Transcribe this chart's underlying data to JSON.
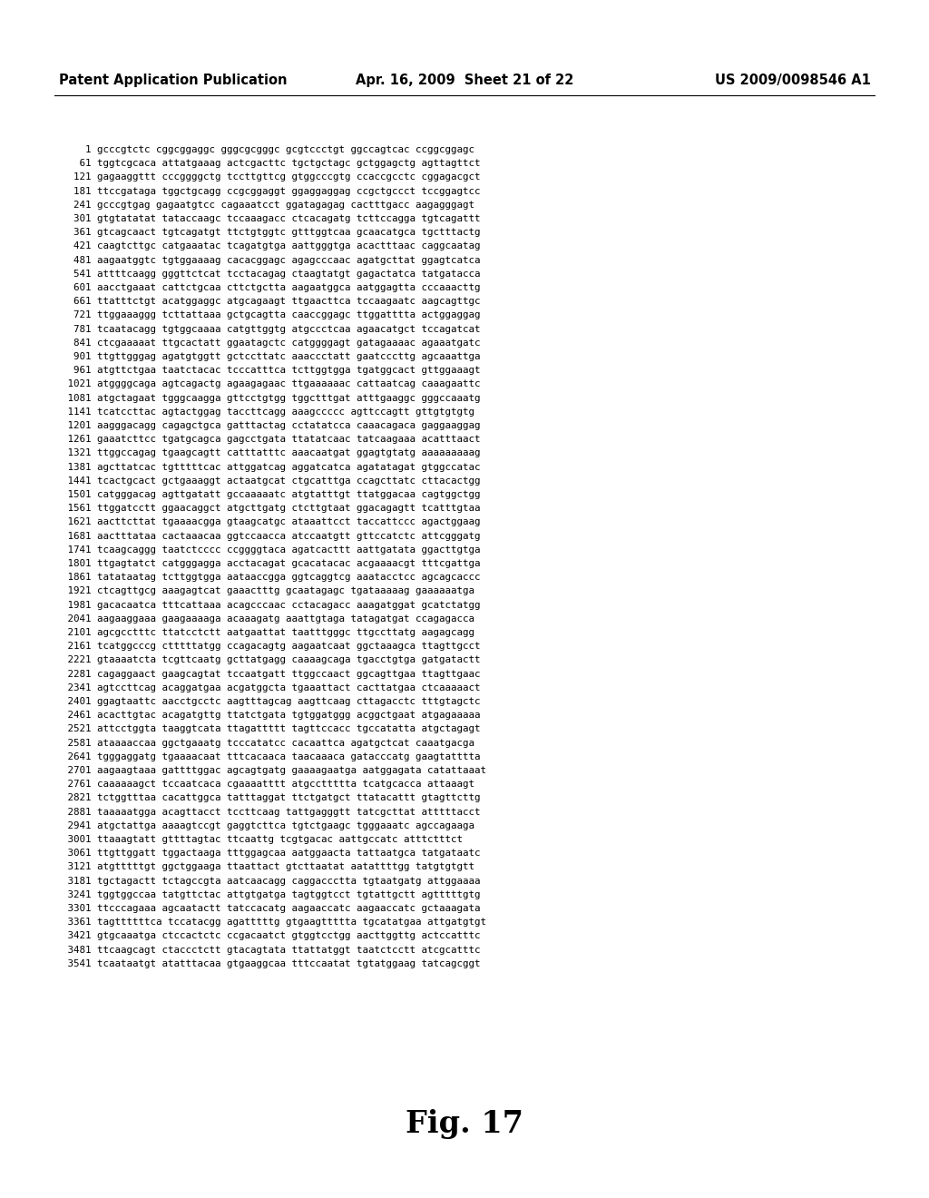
{
  "header_left": "Patent Application Publication",
  "header_center": "Apr. 16, 2009  Sheet 21 of 22",
  "header_right": "US 2009/0098546 A1",
  "figure_label": "Fig. 17",
  "background_color": "#ffffff",
  "text_color": "#000000",
  "header_fontsize": 10.5,
  "body_fontsize": 7.8,
  "fig_label_fontsize": 24,
  "sequence_lines": [
    "    1 gcccgtctc cggcggaggc gggcgcgggc gcgtccctgt ggccagtcac ccggcggagc",
    "   61 tggtcgcaca attatgaaag actcgacttc tgctgctagc gctggagctg agttagttct",
    "  121 gagaaggttt cccggggctg tccttgttcg gtggcccgtg ccaccgcctc cggagacgct",
    "  181 ttccgataga tggctgcagg ccgcggaggt ggaggaggag ccgctgccct tccggagtcc",
    "  241 gcccgtgag gagaatgtcc cagaaatcct ggatagagag cactttgacc aagagggagt",
    "  301 gtgtatatat tataccaagc tccaaagacc ctcacagatg tcttccagga tgtcagattt",
    "  361 gtcagcaact tgtcagatgt ttctgtggtc gtttggtcaa gcaacatgca tgctttactg",
    "  421 caagtcttgc catgaaatac tcagatgtga aattgggtga acactttaac caggcaatag",
    "  481 aagaatggtc tgtggaaaag cacacggagc agagcccaac agatgcttat ggagtcatca",
    "  541 attttcaagg gggttctcat tcctacagag ctaagtatgt gagactatca tatgatacca",
    "  601 aacctgaaat cattctgcaa cttctgctta aagaatggca aatggagtta cccaaacttg",
    "  661 ttatttctgt acatggaggc atgcagaagt ttgaacttca tccaagaatc aagcagttgc",
    "  721 ttggaaaggg tcttattaaa gctgcagtta caaccggagc ttggatttta actggaggag",
    "  781 tcaatacagg tgtggcaaaa catgttggtg atgccctcaa agaacatgct tccagatcat",
    "  841 ctcgaaaaat ttgcactatt ggaatagctc catggggagt gatagaaaac agaaatgatc",
    "  901 ttgttgggag agatgtggtt gctccttatc aaaccctatt gaatcccttg agcaaattga",
    "  961 atgttctgaa taatctacac tcccatttca tcttggtgga tgatggcact gttggaaagt",
    " 1021 atggggcaga agtcagactg agaagagaac ttgaaaaaac cattaatcag caaagaattc",
    " 1081 atgctagaat tgggcaagga gttcctgtgg tggctttgat atttgaaggc gggccaaatg",
    " 1141 tcatccttac agtactggag taccttcagg aaagccccc agttccagtt gttgtgtgtg",
    " 1201 aagggacagg cagagctgca gatttactag cctatatcca caaacagaca gaggaaggag",
    " 1261 gaaatcttcc tgatgcagca gagcctgata ttatatcaac tatcaagaaa acatttaact",
    " 1321 ttggccagag tgaagcagtt catttatttc aaacaatgat ggagtgtatg aaaaaaaaag",
    " 1381 agcttatcac tgtttttcac attggatcag aggatcatca agatatagat gtggccatac",
    " 1441 tcactgcact gctgaaaggt actaatgcat ctgcatttga ccagcttatc cttacactgg",
    " 1501 catgggacag agttgatatt gccaaaaatc atgtatttgt ttatggacaa cagtggctgg",
    " 1561 ttggatcctt ggaacaggct atgcttgatg ctcttgtaat ggacagagtt tcatttgtaa",
    " 1621 aacttcttat tgaaaacgga gtaagcatgc ataaattcct taccattccc agactggaag",
    " 1681 aactttataa cactaaacaa ggtccaacca atccaatgtt gttccatctc attcgggatg",
    " 1741 tcaagcaggg taatctcccc ccggggtaca agatcacttt aattgatata ggacttgtga",
    " 1801 ttgagtatct catgggagga acctacagat gcacatacac acgaaaacgt tttcgattga",
    " 1861 tatataatag tcttggtgga aataaccgga ggtcaggtcg aaatacctcc agcagcaccc",
    " 1921 ctcagttgcg aaagagtcat gaaactttg gcaatagagc tgataaaaag gaaaaaatga",
    " 1981 gacacaatca tttcattaaa acagcccaac cctacagacc aaagatggat gcatctatgg",
    " 2041 aagaaggaaa gaagaaaaga acaaagatg aaattgtaga tatagatgat ccagagacca",
    " 2101 agcgcctttc ttatcctctt aatgaattat taatttgggc ttgccttatg aagagcagg",
    " 2161 tcatggcccg ctttttatgg ccagacagtg aagaatcaat ggctaaagca ttagttgcct",
    " 2221 gtaaaatcta tcgttcaatg gcttatgagg caaaagcaga tgacctgtga gatgatactt",
    " 2281 cagaggaact gaagcagtat tccaatgatt ttggccaact ggcagttgaa ttagttgaac",
    " 2341 agtccttcag acaggatgaa acgatggcta tgaaattact cacttatgaa ctcaaaaact",
    " 2401 ggagtaattc aacctgcctc aagtttagcag aagttcaag cttagacctc tttgtagctc",
    " 2461 acacttgtac acagatgttg ttatctgata tgtggatggg acggctgaat atgagaaaaa",
    " 2521 attcctggta taaggtcata ttagattttt tagttccacc tgccatatta atgctagagt",
    " 2581 ataaaaccaa ggctgaaatg tcccatatcc cacaattca agatgctcat caaatgacga",
    " 2641 tgggaggatg tgaaaacaat tttcacaaca taacaaaca gatacccatg gaagtatttta",
    " 2701 aagaagtaaa gattttggac agcagtgatg gaaaagaatga aatggagata catattaaat",
    " 2761 caaaaaagct tccaatcaca cgaaaatttt atgccttttta tcatgcacca attaaagt",
    " 2821 tctggtttaa cacattggca tatttaggat ttctgatgct ttatacattt gtagttcttg",
    " 2881 taaaaatgga acagttacct tccttcaag tattgagggtt tatcgcttat atttttacct",
    " 2941 atgctattga aaaagtccgt gaggtcttca tgtctgaagc tgggaaatc agccagaaga",
    " 3001 ttaaagtatt gttttagtac ttcaattg tcgtgacac aattgccatc atttctttct",
    " 3061 ttgttggatt tggactaaga tttggagcaa aatggaacta tattaatgca tatgataatc",
    " 3121 atgtttttgt ggctggaaga ttaattact gtcttaatat aatattttgg tatgtgtgtt",
    " 3181 tgctagactt tctagccgta aatcaacagg caggaccctta tgtaatgatg attggaaaa",
    " 3241 tggtggccaa tatgttctac attgtgatga tagtggtcct tgtattgctt agtttttgtg",
    " 3301 ttcccagaaa agcaatactt tatccacatg aagaaccatc aagaaccatc gctaaagata",
    " 3361 tagttttttca tccatacgg agatttttg gtgaagttttta tgcatatgaa attgatgtgt",
    " 3421 gtgcaaatga ctccactctc ccgacaatct gtggtcctgg aacttggttg actccatttc",
    " 3481 ttcaagcagt ctaccctctt gtacagtata ttattatggt taatctcctt atcgcatttc",
    " 3541 tcaataatgt atatttacaa gtgaaggcaa tttccaatat tgtatggaag tatcagcggt"
  ]
}
